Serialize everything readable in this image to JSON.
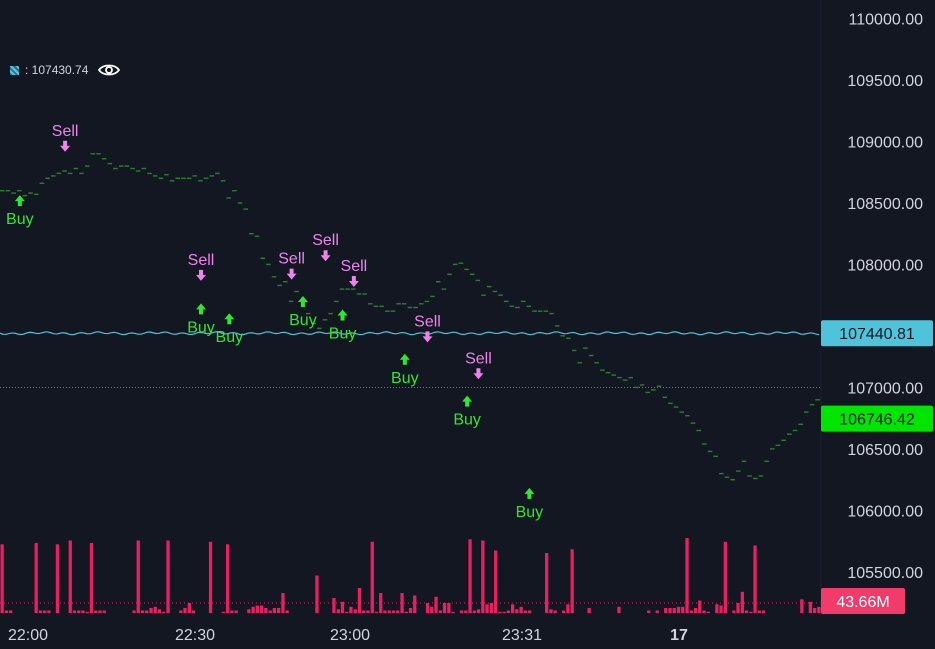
{
  "legend": {
    "value_text": ": 107430.74",
    "eye_icon": "eye-icon"
  },
  "chart_data": {
    "type": "scatter",
    "price_axis": {
      "ticks": [
        "110000.00",
        "109500.00",
        "109000.00",
        "108500.00",
        "108000.00",
        "107500.00",
        "107000.00",
        "106500.00",
        "106000.00",
        "105500.00"
      ],
      "tick_values": [
        110000,
        109500,
        109000,
        108500,
        108000,
        107500,
        107000,
        106500,
        106000,
        105500
      ],
      "ylim": [
        105150,
        110150
      ]
    },
    "time_axis": {
      "labels": [
        "22:00",
        "22:30",
        "23:00",
        "23:31",
        "17"
      ]
    },
    "price_markers": [
      {
        "label": "107440.81",
        "value": 107440.81,
        "color": "#4fc3d9",
        "text_color": "#131722"
      },
      {
        "label": "106746.42",
        "value": 106746.42,
        "color": "#00e600",
        "text_color": "#131722"
      }
    ],
    "volume_marker": {
      "label": "43.66M",
      "color": "#f23b6b",
      "text_color": "#ffffff"
    },
    "reference_line": {
      "value": 107000,
      "color": "#2ea043",
      "style": "dotted"
    },
    "reference_series_color": "#4fc3d9",
    "price_series": {
      "color": "#2e7d32",
      "values": [
        108600,
        108600,
        108580,
        108600,
        108560,
        108580,
        108570,
        108660,
        108700,
        108720,
        108740,
        108760,
        108740,
        108780,
        108740,
        108800,
        108900,
        108900,
        108860,
        108820,
        108780,
        108800,
        108800,
        108780,
        108760,
        108780,
        108740,
        108720,
        108700,
        108730,
        108680,
        108700,
        108700,
        108700,
        108720,
        108680,
        108700,
        108720,
        108740,
        108680,
        108540,
        108600,
        108500,
        108450,
        108250,
        108230,
        108050,
        108000,
        107900,
        107830,
        107860,
        107700,
        107780,
        107700,
        107600,
        107520,
        107480,
        107550,
        107600,
        107700,
        107800,
        107800,
        107800,
        107760,
        107760,
        107680,
        107660,
        107660,
        107620,
        107620,
        107680,
        107680,
        107650,
        107650,
        107680,
        107700,
        107740,
        107860,
        107800,
        107920,
        108000,
        108010,
        107960,
        107920,
        107870,
        107750,
        107820,
        107780,
        107750,
        107700,
        107660,
        107650,
        107700,
        107660,
        107620,
        107620,
        107620,
        107600,
        107500,
        107420,
        107400,
        107300,
        107200,
        107320,
        107260,
        107200,
        107140,
        107120,
        107100,
        107080,
        107060,
        107080,
        107000,
        107020,
        106960,
        106980,
        107010,
        106920,
        106870,
        106840,
        106800,
        106770,
        106710,
        106650,
        106540,
        106480,
        106440,
        106300,
        106270,
        106250,
        106320,
        106400,
        106280,
        106260,
        106280,
        106400,
        106500,
        106530,
        106570,
        106620,
        106650,
        106700,
        106800,
        106860,
        106900
      ]
    },
    "signals": [
      {
        "type": "Buy",
        "index": 3,
        "price": 108580
      },
      {
        "type": "Sell",
        "index": 11,
        "price": 108900
      },
      {
        "type": "Sell",
        "index": 35,
        "price": 107850
      },
      {
        "type": "Buy",
        "index": 35,
        "price": 107700
      },
      {
        "type": "Buy",
        "index": 40,
        "price": 107620
      },
      {
        "type": "Sell",
        "index": 51,
        "price": 107860
      },
      {
        "type": "Buy",
        "index": 53,
        "price": 107760
      },
      {
        "type": "Sell",
        "index": 57,
        "price": 108010
      },
      {
        "type": "Sell",
        "index": 62,
        "price": 107800
      },
      {
        "type": "Buy",
        "index": 60,
        "price": 107650
      },
      {
        "type": "Sell",
        "index": 75,
        "price": 107350
      },
      {
        "type": "Buy",
        "index": 71,
        "price": 107290
      },
      {
        "type": "Sell",
        "index": 84,
        "price": 107050
      },
      {
        "type": "Buy",
        "index": 82,
        "price": 106950
      },
      {
        "type": "Buy",
        "index": 93,
        "price": 106200
      }
    ],
    "volume": {
      "color": "#e91e63",
      "max": 100,
      "values": [
        55,
        2,
        2,
        0,
        0,
        0,
        0,
        0,
        56,
        2,
        2,
        2,
        0,
        55,
        0,
        0,
        58,
        2,
        2,
        2,
        1,
        56,
        2,
        2,
        2,
        0,
        0,
        0,
        0,
        0,
        0,
        2,
        58,
        2,
        2,
        4,
        5,
        3,
        1,
        58,
        0,
        0,
        2,
        4,
        8,
        2,
        0,
        0,
        0,
        57,
        0,
        0,
        1,
        55,
        2,
        2,
        0,
        0,
        3,
        5,
        6,
        6,
        4,
        2,
        4,
        4,
        16,
        2,
        0,
        0,
        0,
        0,
        0,
        0,
        30,
        0,
        0,
        0,
        12,
        3,
        9,
        1,
        5,
        3,
        20,
        2,
        2,
        57,
        1,
        16,
        2,
        2,
        2,
        2,
        16,
        1,
        4,
        14,
        0,
        0,
        8,
        5,
        13,
        2,
        8,
        8,
        1,
        0,
        2,
        2,
        59,
        2,
        3,
        58,
        7,
        8,
        50,
        1,
        1,
        2,
        7,
        3,
        5,
        2,
        2,
        0,
        0,
        0,
        48,
        3,
        2,
        0,
        2,
        7,
        51,
        0,
        0,
        0,
        4,
        0,
        0,
        0,
        0,
        0,
        0,
        5,
        0,
        0,
        0,
        0,
        0,
        0,
        2,
        0,
        2,
        0,
        4,
        4,
        4,
        5,
        5,
        60,
        2,
        4,
        10,
        2,
        1,
        0,
        7,
        6,
        57,
        0,
        2,
        8,
        17,
        2,
        1,
        54,
        2,
        2,
        0,
        0,
        0,
        0,
        0,
        0,
        0,
        0,
        11,
        0,
        9,
        4,
        5
      ]
    }
  }
}
